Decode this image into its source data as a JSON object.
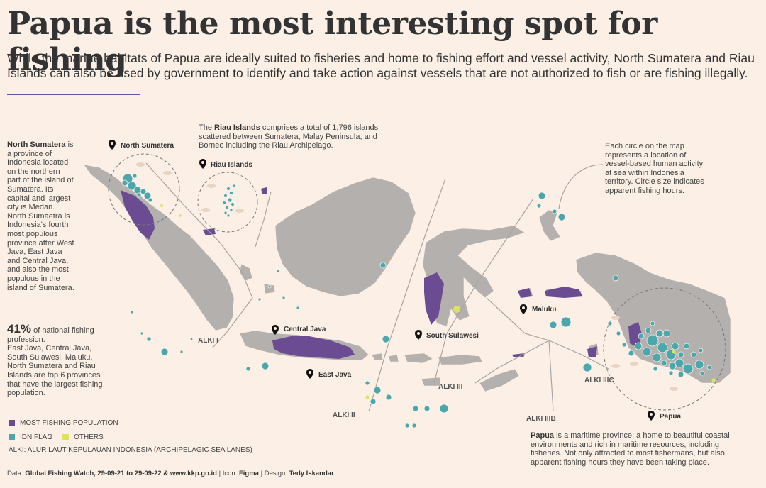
{
  "title": "Papua is the most interesting spot for fishing",
  "subtitle": "While the marine habitats of Papua are ideally suited to fisheries and home to fishing effort and vessel activity, North Sumatera and Riau Islands can also be used by government to identify and take action against vessels that are not authorized to fish or are fishing illegally.",
  "colors": {
    "background": "#fcefe6",
    "land": "#b3b0ae",
    "most_fishing": "#6b4c93",
    "idn_flag": "#4aa8ad",
    "others": "#dfe35a",
    "accent_rule": "#5a5ea8"
  },
  "north_sumatera_note": {
    "bold": "North Sumatera",
    "text": " is a province of Indonesia located on the northern part of the island of Sumatera. Its capital and largest city is Medan. North Sumaetra is Indonesia's fourth most populous province after West Java, East Java and Central Java, and also the most populous in the island of Sumatera."
  },
  "stat_note": {
    "value": "41%",
    "text1": " of national fishing profession.",
    "text2": "East Java, Central Java, South Sulawesi, Maluku, North Sumatera and Riau Islands are top 6 provinces that have the largest fishing population."
  },
  "riau_note": {
    "prefix": "The ",
    "bold": "Riau Islands",
    "text": " comprises a total of 1,796 islands scattered between Sumatera, Malay Peninsula, and Borneo including the Riau Archipelago."
  },
  "circle_note": "Each circle on the map represents a location of vessel-based human activity at sea within Indonesia territory. Circle size indicates apparent fishing hours.",
  "papua_note": {
    "bold": "Papua",
    "text": " is a maritime province, a home to beautiful coastal environments and rich in maritime resources, including fisheries. Not only attracted to most fishermans, but also apparent fishing hours they have been taking place."
  },
  "pins": {
    "north_sumatera": "North Sumatera",
    "riau": "Riau Islands",
    "central_java": "Central Java",
    "east_java": "East Java",
    "south_sulawesi": "South Sulawesi",
    "maluku": "Maluku",
    "papua": "Papua"
  },
  "alki": {
    "a1": "ALKI I",
    "a2": "ALKI II",
    "a3": "ALKI III",
    "a3b": "ALKI IIIB",
    "a3c": "ALKI IIIC"
  },
  "legend": {
    "most": "MOST FISHING POPULATION",
    "idn": "IDN FLAG",
    "others": "OTHERS",
    "alki": "ALKI: ALUR LAUT KEPULAUAN INDONESIA (ARCHIPELAGIC SEA LANES)"
  },
  "footer": {
    "data_label": "Data: ",
    "data_value": "Global Fishing Watch, 29-09-21 to 29-09-22 & www.kkp.go.id",
    "icon_label": " | Icon: ",
    "icon_value": "Figma",
    "design_label": " | Design: ",
    "design_value": "Tedy Iskandar"
  }
}
